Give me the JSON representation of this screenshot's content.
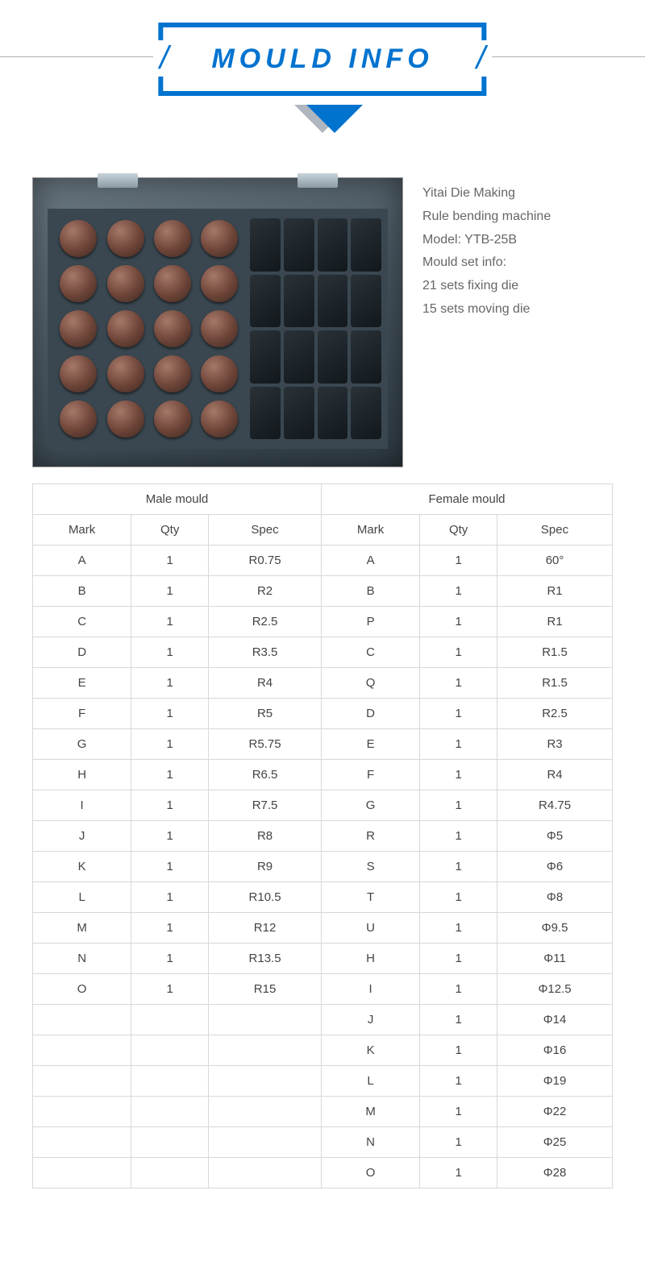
{
  "header": {
    "title": "MOULD INFO"
  },
  "info_lines": [
    "Yitai Die Making",
    "Rule bending machine",
    "Model: YTB-25B",
    "Mould set info:",
    "21 sets fixing die",
    "15 sets moving die"
  ],
  "table": {
    "group_headers": [
      "Male mould",
      "Female mould"
    ],
    "col_headers": [
      "Mark",
      "Qty",
      "Spec",
      "Mark",
      "Qty",
      "Spec"
    ],
    "rows": [
      [
        "A",
        "1",
        "R0.75",
        "A",
        "1",
        "60°"
      ],
      [
        "B",
        "1",
        "R2",
        "B",
        "1",
        "R1"
      ],
      [
        "C",
        "1",
        "R2.5",
        "P",
        "1",
        "R1"
      ],
      [
        "D",
        "1",
        "R3.5",
        "C",
        "1",
        "R1.5"
      ],
      [
        "E",
        "1",
        "R4",
        "Q",
        "1",
        "R1.5"
      ],
      [
        "F",
        "1",
        "R5",
        "D",
        "1",
        "R2.5"
      ],
      [
        "G",
        "1",
        "R5.75",
        "E",
        "1",
        "R3"
      ],
      [
        "H",
        "1",
        "R6.5",
        "F",
        "1",
        "R4"
      ],
      [
        "I",
        "1",
        "R7.5",
        "G",
        "1",
        "R4.75"
      ],
      [
        "J",
        "1",
        "R8",
        "R",
        "1",
        "Φ5"
      ],
      [
        "K",
        "1",
        "R9",
        "S",
        "1",
        "Φ6"
      ],
      [
        "L",
        "1",
        "R10.5",
        "T",
        "1",
        "Φ8"
      ],
      [
        "M",
        "1",
        "R12",
        "U",
        "1",
        "Φ9.5"
      ],
      [
        "N",
        "1",
        "R13.5",
        "H",
        "1",
        "Φ11"
      ],
      [
        "O",
        "1",
        "R15",
        "I",
        "1",
        "Φ12.5"
      ],
      [
        "",
        "",
        "",
        "J",
        "1",
        "Φ14"
      ],
      [
        "",
        "",
        "",
        "K",
        "1",
        "Φ16"
      ],
      [
        "",
        "",
        "",
        "L",
        "1",
        "Φ19"
      ],
      [
        "",
        "",
        "",
        "M",
        "1",
        "Φ22"
      ],
      [
        "",
        "",
        "",
        "N",
        "1",
        "Φ25"
      ],
      [
        "",
        "",
        "",
        "O",
        "1",
        "Φ28"
      ]
    ]
  },
  "style": {
    "accent_color": "#0073cf",
    "text_color": "#666666",
    "border_color": "#d8d8d8",
    "title_fontsize": 34,
    "body_fontsize": 15
  }
}
